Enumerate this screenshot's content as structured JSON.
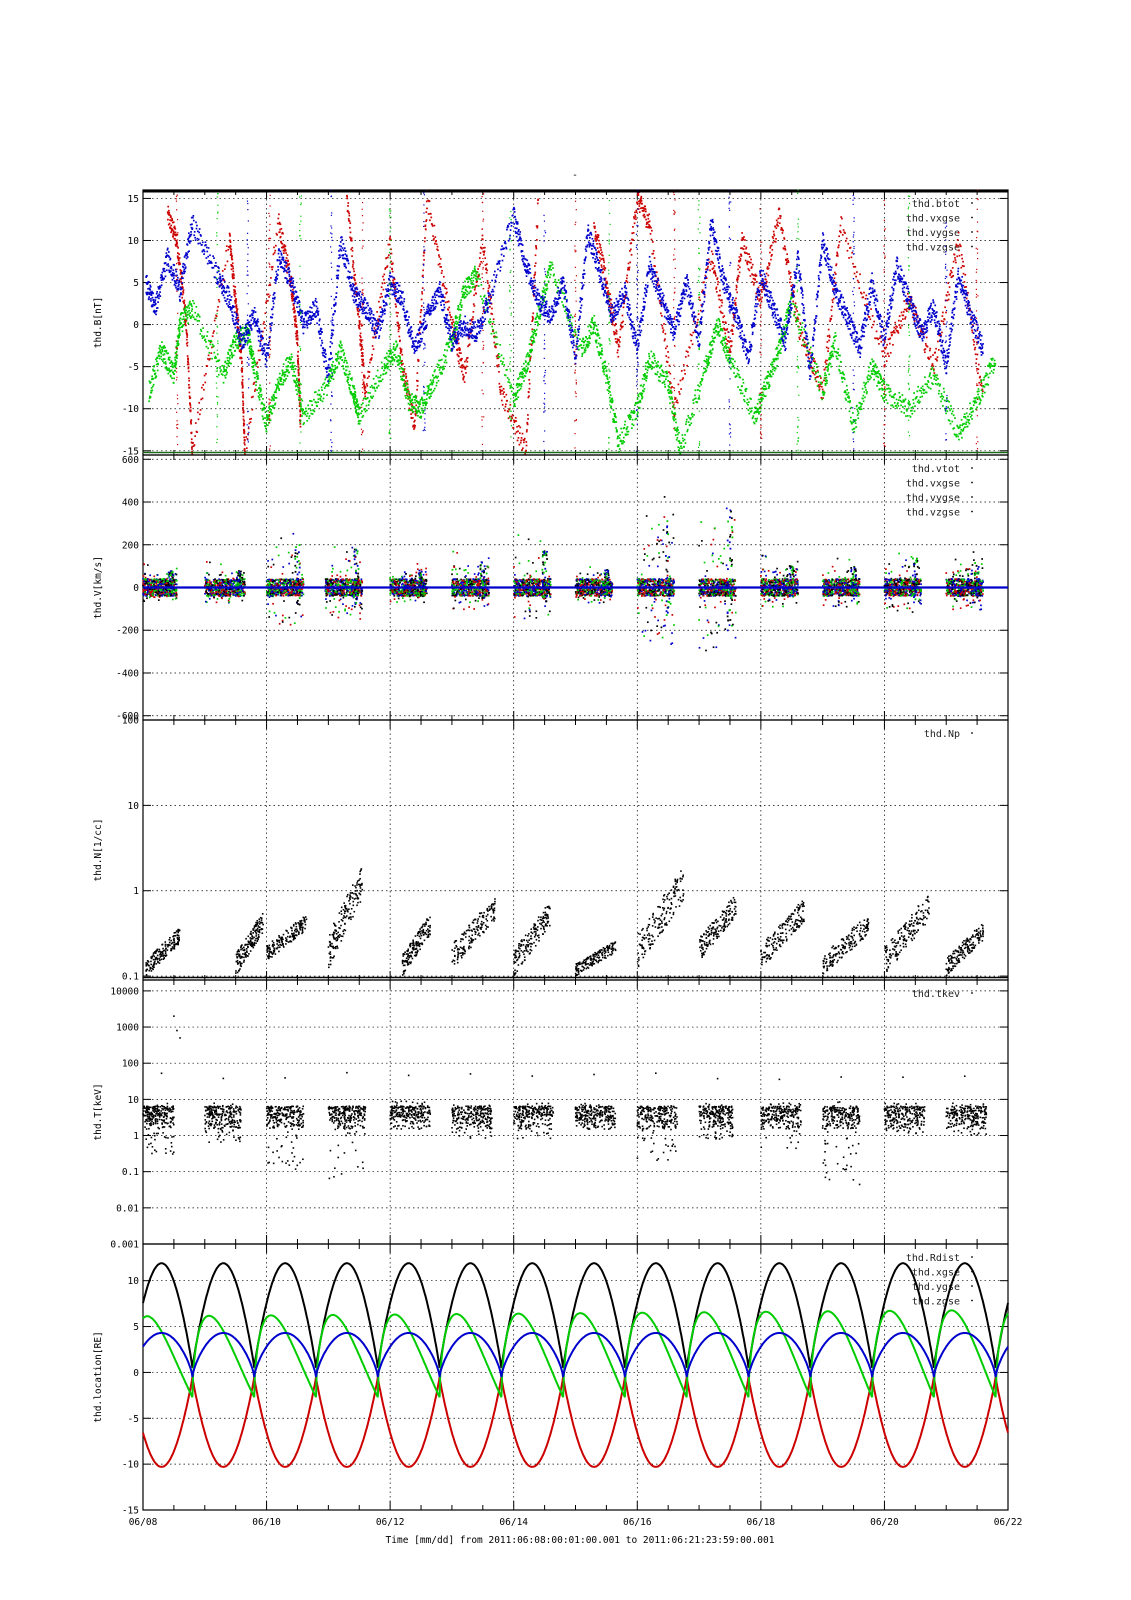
{
  "page_title": "-",
  "x_axis": {
    "ticks": [
      "06/08",
      "06/10",
      "06/12",
      "06/14",
      "06/16",
      "06/18",
      "06/20",
      "06/22"
    ],
    "label": "Time [mm/dd]  from 2011:06:08:00:01:00.001  to  2011:06:21:23:59:00.001"
  },
  "colors": {
    "black": "#000000",
    "red": "#cc0000",
    "green": "#00cc00",
    "blue": "#0000cc"
  },
  "chart_data": [
    {
      "type": "scatter",
      "ylabel": "thd.B[nT]",
      "ylim": [
        -15.5,
        16
      ],
      "yticks": [
        {
          "v": 15,
          "label": "15"
        },
        {
          "v": 10,
          "label": "10"
        },
        {
          "v": 5,
          "label": "5"
        },
        {
          "v": 0,
          "label": "0"
        },
        {
          "v": -5,
          "label": "-5"
        },
        {
          "v": -10,
          "label": "-10"
        },
        {
          "v": -15,
          "label": "-15"
        }
      ],
      "legend": [
        "thd.btot",
        "thd.vxgse",
        "thd.vygse",
        "thd.vzgse"
      ],
      "series": [
        {
          "name": "thd.btot",
          "color": "black",
          "x": [
            0,
            14
          ],
          "y": [
            16,
            16
          ]
        },
        {
          "name": "thd.vxgse",
          "color": "red",
          "x": [
            0.4,
            0.55,
            0.7,
            0.8,
            1.4,
            1.5,
            1.6,
            1.65,
            2.2,
            2.4,
            2.5,
            2.55,
            3.3,
            3.5,
            3.6,
            4.0,
            4.2,
            4.4,
            4.6,
            5.0,
            5.2,
            5.5,
            5.8,
            6.2,
            6.4,
            7.3,
            7.5,
            7.7,
            8.0,
            8.2,
            8.6,
            9.2,
            9.5,
            9.7,
            10.0,
            10.3,
            10.6,
            11.0,
            11.3,
            12.0,
            12.4,
            12.8,
            13.2,
            13.6
          ],
          "y": [
            13,
            10,
            0,
            -15,
            10,
            3,
            -5,
            -15,
            12,
            5,
            -2,
            -12,
            15,
            0,
            -8,
            10,
            -5,
            -12,
            15,
            0,
            -6,
            10,
            -8,
            -15,
            15,
            12,
            5,
            -3,
            15,
            12,
            -10,
            8,
            -3,
            10,
            3,
            13,
            0,
            -8,
            12,
            -4,
            3,
            -5,
            10,
            -9
          ]
        },
        {
          "name": "thd.vygse",
          "color": "green",
          "x": [
            0.1,
            0.3,
            0.5,
            0.6,
            0.8,
            1.3,
            1.5,
            1.7,
            1.8,
            2.0,
            2.2,
            2.4,
            2.6,
            3.0,
            3.2,
            3.4,
            3.5,
            3.9,
            4.1,
            4.3,
            4.5,
            4.7,
            5.0,
            5.2,
            5.4,
            6.0,
            6.2,
            6.4,
            6.6,
            7.1,
            7.3,
            7.5,
            7.7,
            8.0,
            8.2,
            8.5,
            8.7,
            9.1,
            9.3,
            9.5,
            9.9,
            10.1,
            10.3,
            10.5,
            11.0,
            11.2,
            11.5,
            11.8,
            12.0,
            12.4,
            12.8,
            13.2,
            13.5,
            13.8
          ],
          "y": [
            -8,
            -3,
            -6,
            0,
            2,
            -6,
            -2,
            -1,
            -5,
            -12,
            -7,
            -4,
            -11,
            -7,
            -3,
            -8,
            -11,
            -5,
            -3,
            -9,
            -10,
            -7,
            -2,
            4,
            6,
            -9,
            -5,
            1,
            7,
            -3,
            0,
            -6,
            -14,
            -10,
            -4,
            -7,
            -15,
            -5,
            0,
            -4,
            -11,
            -7,
            -3,
            3,
            -8,
            -2,
            -12,
            -5,
            -8,
            -10,
            -6,
            -13,
            -9,
            -4
          ]
        },
        {
          "name": "thd.vzgse",
          "color": "blue",
          "x": [
            0.05,
            0.2,
            0.4,
            0.6,
            0.8,
            1.2,
            1.4,
            1.6,
            1.8,
            2.0,
            2.2,
            2.4,
            2.6,
            2.8,
            3.0,
            3.2,
            3.4,
            3.6,
            3.8,
            4.0,
            4.2,
            4.4,
            4.6,
            4.8,
            5.0,
            5.2,
            5.4,
            5.6,
            6.0,
            6.2,
            6.4,
            6.6,
            6.8,
            7.0,
            7.2,
            7.4,
            7.6,
            7.8,
            8.0,
            8.2,
            8.4,
            8.6,
            8.8,
            9.0,
            9.2,
            9.4,
            9.6,
            9.8,
            10.0,
            10.2,
            10.4,
            10.6,
            10.8,
            11.0,
            11.2,
            11.4,
            11.6,
            11.8,
            12.0,
            12.2,
            12.4,
            12.6,
            12.8,
            13.0,
            13.2,
            13.4,
            13.6
          ],
          "y": [
            5,
            2,
            8,
            4,
            12,
            6,
            3,
            -2,
            1,
            -4,
            8,
            5,
            0,
            2,
            -6,
            10,
            4,
            2,
            -1,
            5,
            3,
            -3,
            1,
            4,
            -2,
            0,
            -1,
            3,
            13,
            7,
            3,
            1,
            5,
            -4,
            11,
            6,
            1,
            4,
            -3,
            7,
            3,
            -1,
            5,
            -2,
            12,
            5,
            1,
            -4,
            6,
            2,
            -2,
            8,
            -6,
            10,
            4,
            1,
            -3,
            5,
            -2,
            7,
            3,
            -1,
            2,
            -5,
            6,
            1,
            -3
          ]
        }
      ]
    },
    {
      "type": "scatter",
      "ylabel": "thd.V[km/s]",
      "ylim": [
        -620,
        620
      ],
      "yticks": [
        {
          "v": 600,
          "label": "600"
        },
        {
          "v": 400,
          "label": "400"
        },
        {
          "v": 200,
          "label": "200"
        },
        {
          "v": 0,
          "label": "0"
        },
        {
          "v": -200,
          "label": "-200"
        },
        {
          "v": -400,
          "label": "-400"
        },
        {
          "v": -600,
          "label": "-600"
        }
      ],
      "legend": [
        "thd.vtot",
        "thd.vxgse",
        "thd.vygse",
        "thd.vzgse"
      ],
      "bursts": [
        {
          "x0": 0.0,
          "x1": 0.55,
          "amp": 110
        },
        {
          "x0": 1.0,
          "x1": 1.65,
          "amp": 120
        },
        {
          "x0": 2.0,
          "x1": 2.6,
          "amp": 290
        },
        {
          "x0": 2.95,
          "x1": 3.55,
          "amp": 260
        },
        {
          "x0": 4.0,
          "x1": 4.6,
          "amp": 120
        },
        {
          "x0": 5.0,
          "x1": 5.6,
          "amp": 170
        },
        {
          "x0": 6.0,
          "x1": 6.6,
          "amp": 250
        },
        {
          "x0": 7.0,
          "x1": 7.6,
          "amp": 120
        },
        {
          "x0": 8.0,
          "x1": 8.6,
          "amp": 460
        },
        {
          "x0": 9.0,
          "x1": 9.6,
          "amp": 520
        },
        {
          "x0": 10.0,
          "x1": 10.6,
          "amp": 150
        },
        {
          "x0": 11.0,
          "x1": 11.6,
          "amp": 150
        },
        {
          "x0": 12.0,
          "x1": 12.6,
          "amp": 200
        },
        {
          "x0": 13.0,
          "x1": 13.6,
          "amp": 180
        }
      ],
      "series": [
        {
          "name": "thd.vtot",
          "color": "blue",
          "x": [
            0,
            14
          ],
          "y": [
            0,
            0
          ]
        }
      ]
    },
    {
      "type": "scatter",
      "ylabel": "thd.N[1/cc]",
      "log": true,
      "ylim": [
        0.09,
        100
      ],
      "yticks": [
        {
          "v": 100,
          "label": "100"
        },
        {
          "v": 10,
          "label": "10"
        },
        {
          "v": 1,
          "label": "1"
        },
        {
          "v": 0.1,
          "label": "0.1"
        }
      ],
      "legend": [
        "thd.Np"
      ],
      "clusters": [
        {
          "x0": 0.05,
          "x1": 0.6,
          "y0": 0.1,
          "y1": 0.35
        },
        {
          "x0": 1.5,
          "x1": 1.95,
          "y0": 0.1,
          "y1": 0.55
        },
        {
          "x0": 2.0,
          "x1": 2.65,
          "y0": 0.15,
          "y1": 0.5
        },
        {
          "x0": 3.0,
          "x1": 3.55,
          "y0": 0.12,
          "y1": 1.8
        },
        {
          "x0": 4.2,
          "x1": 4.65,
          "y0": 0.1,
          "y1": 0.5
        },
        {
          "x0": 5.0,
          "x1": 5.7,
          "y0": 0.12,
          "y1": 0.8
        },
        {
          "x0": 6.0,
          "x1": 6.6,
          "y0": 0.1,
          "y1": 0.7
        },
        {
          "x0": 7.0,
          "x1": 7.65,
          "y0": 0.1,
          "y1": 0.25
        },
        {
          "x0": 8.0,
          "x1": 8.75,
          "y0": 0.12,
          "y1": 1.7
        },
        {
          "x0": 9.0,
          "x1": 9.6,
          "y0": 0.15,
          "y1": 0.85
        },
        {
          "x0": 10.0,
          "x1": 10.7,
          "y0": 0.12,
          "y1": 0.75
        },
        {
          "x0": 11.0,
          "x1": 11.75,
          "y0": 0.1,
          "y1": 0.5
        },
        {
          "x0": 12.0,
          "x1": 12.75,
          "y0": 0.1,
          "y1": 0.9
        },
        {
          "x0": 13.0,
          "x1": 13.6,
          "y0": 0.1,
          "y1": 0.4
        }
      ],
      "series": [
        {
          "name": "thd.Np",
          "color": "black",
          "x": [
            0,
            14
          ],
          "y": [
            0.092,
            0.092
          ]
        }
      ]
    },
    {
      "type": "scatter",
      "ylabel": "thd.T[keV]",
      "log": true,
      "ylim": [
        0.001,
        20000
      ],
      "yticks": [
        {
          "v": 10000,
          "label": "10000"
        },
        {
          "v": 1000,
          "label": "1000"
        },
        {
          "v": 100,
          "label": "100"
        },
        {
          "v": 10,
          "label": "10"
        },
        {
          "v": 1,
          "label": "1"
        },
        {
          "v": 0.1,
          "label": "0.1"
        },
        {
          "v": 0.01,
          "label": "0.01"
        },
        {
          "v": 0.001,
          "label": "0.001"
        }
      ],
      "legend": [
        "thd.tkev"
      ],
      "clusters": [
        {
          "x0": 0.0,
          "x1": 0.5,
          "lo": 0.3,
          "hi": 8
        },
        {
          "x0": 1.0,
          "x1": 1.6,
          "lo": 0.6,
          "hi": 8
        },
        {
          "x0": 2.0,
          "x1": 2.6,
          "lo": 0.1,
          "hi": 8
        },
        {
          "x0": 3.0,
          "x1": 3.6,
          "lo": 0.06,
          "hi": 7
        },
        {
          "x0": 4.0,
          "x1": 4.65,
          "lo": 3,
          "hi": 9
        },
        {
          "x0": 5.0,
          "x1": 5.65,
          "lo": 0.8,
          "hi": 8
        },
        {
          "x0": 6.0,
          "x1": 6.65,
          "lo": 0.8,
          "hi": 8
        },
        {
          "x0": 7.0,
          "x1": 7.65,
          "lo": 1.5,
          "hi": 8
        },
        {
          "x0": 8.0,
          "x1": 8.65,
          "lo": 0.2,
          "hi": 7
        },
        {
          "x0": 9.0,
          "x1": 9.55,
          "lo": 0.8,
          "hi": 8
        },
        {
          "x0": 10.0,
          "x1": 10.65,
          "lo": 0.4,
          "hi": 8
        },
        {
          "x0": 11.0,
          "x1": 11.6,
          "lo": 0.04,
          "hi": 9
        },
        {
          "x0": 12.0,
          "x1": 12.65,
          "lo": 1,
          "hi": 8
        },
        {
          "x0": 13.0,
          "x1": 13.65,
          "lo": 1,
          "hi": 8
        }
      ],
      "series": [
        {
          "name": "thd.tkev",
          "color": "black",
          "x": [
            0.5,
            0.55,
            0.6
          ],
          "y": [
            2000,
            800,
            500
          ]
        }
      ]
    },
    {
      "type": "line",
      "ylabel": "thd.location[RE]",
      "ylim": [
        -15,
        14
      ],
      "yticks": [
        {
          "v": 10,
          "label": "10"
        },
        {
          "v": 5,
          "label": "5"
        },
        {
          "v": 0,
          "label": "0"
        },
        {
          "v": -5,
          "label": "-5"
        },
        {
          "v": -10,
          "label": "-10"
        },
        {
          "v": -15,
          "label": "-15"
        }
      ],
      "legend": [
        "thd.Rdist",
        "thd.xgse",
        "thd.ygse",
        "thd.zgse"
      ],
      "orbit": {
        "period_days": 1.0,
        "first_perigee_day": 0.8,
        "rdist_max": 11.9,
        "xgse_min": -10.3,
        "xgse_at_perigee": -0.5,
        "ygse_max": 6.5,
        "ygse_min": -2.7,
        "zgse_max": 4.3,
        "zgse_min": -0.5
      },
      "series": [
        {
          "name": "thd.Rdist",
          "color": "black"
        },
        {
          "name": "thd.xgse",
          "color": "red"
        },
        {
          "name": "thd.ygse",
          "color": "green"
        },
        {
          "name": "thd.zgse",
          "color": "blue"
        }
      ]
    }
  ]
}
